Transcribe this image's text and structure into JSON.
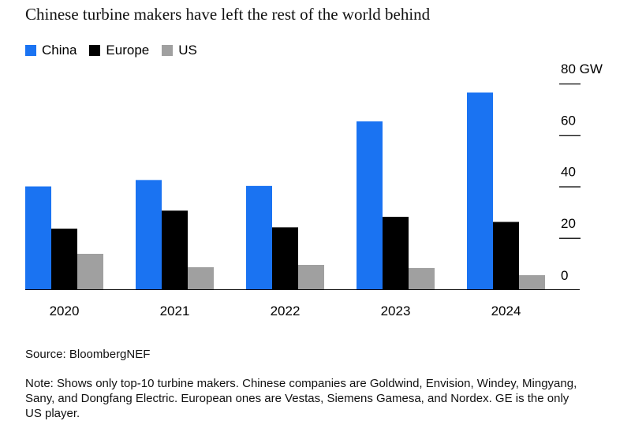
{
  "title": "Chinese turbine makers have left the rest of the world behind",
  "source": "Source: BloombergNEF",
  "note": "Note: Shows only top-10 turbine makers. Chinese companies are Goldwind, Envision, Windey, Mingyang, Sany, and Dongfang Electric. European ones are Vestas, Siemens Gamesa, and Nordex. GE is the only US player.",
  "legend": [
    {
      "label": "China",
      "color": "#1a73f2"
    },
    {
      "label": "Europe",
      "color": "#000000"
    },
    {
      "label": "US",
      "color": "#a0a0a0"
    }
  ],
  "chart_data": {
    "type": "bar",
    "title": "Chinese turbine makers have left the rest of the world behind",
    "categories": [
      "2020",
      "2021",
      "2022",
      "2023",
      "2024"
    ],
    "series": [
      {
        "name": "China",
        "color": "#1a73f2",
        "values": [
          40,
          42.5,
          40.2,
          65.3,
          76.5
        ]
      },
      {
        "name": "Europe",
        "color": "#000000",
        "values": [
          23.6,
          30.6,
          24.1,
          28.2,
          26.2
        ]
      },
      {
        "name": "US",
        "color": "#a0a0a0",
        "values": [
          13.8,
          8.6,
          9.5,
          8.3,
          5.5
        ]
      }
    ],
    "ylim": [
      0,
      80
    ],
    "yticks": [
      0,
      20,
      40,
      60,
      80
    ],
    "ytick_labels": [
      "0",
      "20",
      "40",
      "60",
      "80 GW"
    ],
    "y_axis_position": "right",
    "legend_position": "top-left",
    "grid": false
  }
}
